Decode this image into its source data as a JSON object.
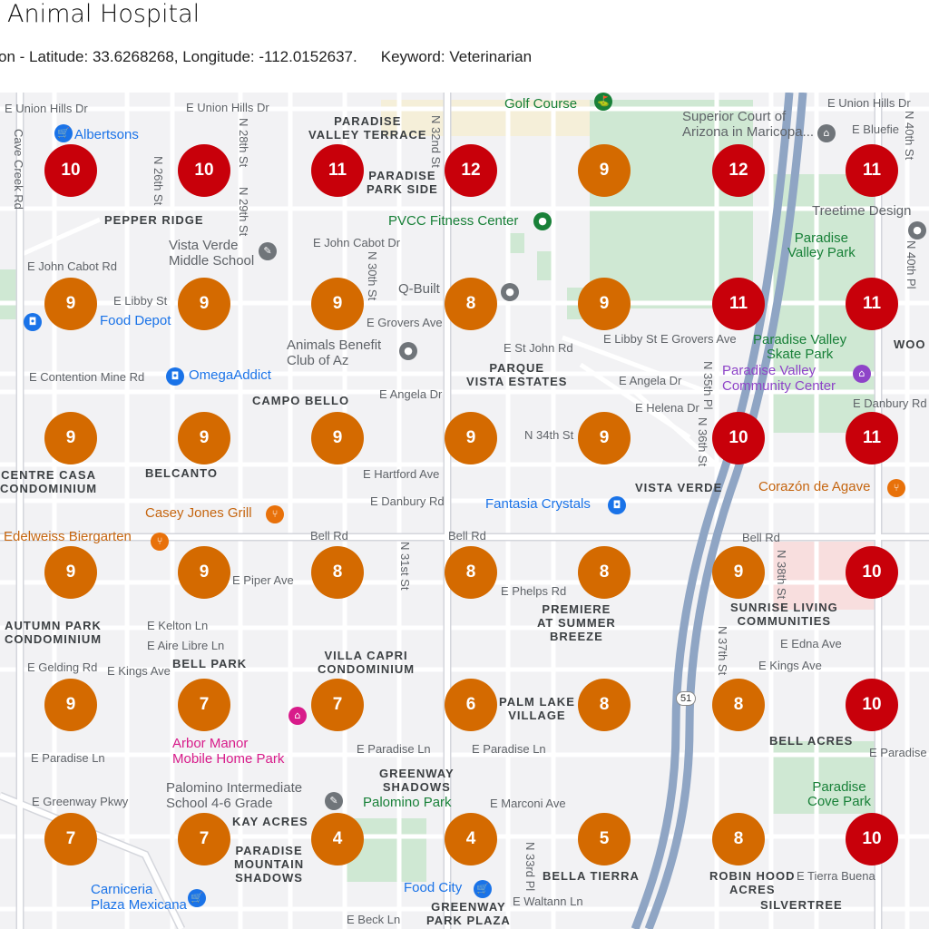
{
  "header": {
    "title": "Animal Hospital",
    "location": "on - Latitude: 33.6268268, Longitude: -112.0152637.",
    "keyword": "Keyword: Veterinarian"
  },
  "colors": {
    "high_rank": "#c8000a",
    "mid_rank": "#d46a00"
  },
  "grid": {
    "rows": [
      [
        10,
        10,
        11,
        12,
        9,
        12,
        11
      ],
      [
        9,
        9,
        9,
        8,
        9,
        11,
        11
      ],
      [
        9,
        9,
        9,
        9,
        9,
        10,
        11
      ],
      [
        9,
        9,
        8,
        8,
        8,
        9,
        10
      ],
      [
        9,
        7,
        7,
        6,
        8,
        8,
        10
      ],
      [
        7,
        7,
        4,
        4,
        5,
        8,
        10
      ]
    ]
  },
  "map": {
    "labels": [
      "E Union Hills Dr",
      "E Union Hills Dr",
      "E Union Hills Dr",
      "Cave Creek Rd",
      "N 26th St",
      "N 28th St",
      "N 29th St",
      "N 32nd St",
      "PARADISE\nVALLEY TERRACE",
      "PARADISE\nPARK SIDE",
      "PEPPER RIDGE",
      "E John Cabot Rd",
      "E John Cabot Dr",
      "E Libby St",
      "E Grovers Ave",
      "E Contention Mine Rd",
      "E Angela Dr",
      "CAMPO BELLO",
      "BELCANTO",
      "E Hartford Ave",
      "E Danbury Rd",
      "Bell Rd",
      "Bell Rd",
      "Bell Rd",
      "AUTUMN PARK\nCONDOMINIUM",
      "E Kelton Ln",
      "E Aire Libre Ln",
      "BELL PARK",
      "E Kings Ave",
      "VILLA CAPRI\nCONDOMINIUM",
      "E Paradise Ln",
      "E Paradise Ln",
      "E Paradise Ln",
      "KAY ACRES",
      "E Greenway Pkwy",
      "PARADISE\nMOUNTAIN\nSHADOWS",
      "GREENWAY\nSHADOWS",
      "E Marconi Ave",
      "E Waltann Ln",
      "E Beck Ln",
      "GREENWAY\nPARK PLAZA",
      "PARQUE\nVISTA ESTATES",
      "E St John Rd",
      "E Libby St",
      "E Grovers Ave",
      "E Angela Dr",
      "E Helena Dr",
      "N 34th St",
      "N 35th Pl",
      "N 36th St",
      "VISTA VERDE",
      "PREMIERE\nAT SUMMER\nBREEZE",
      "PALM LAKE\nVILLAGE",
      "E Phelps Rd",
      "SUNRISE LIVING\nCOMMUNITIES",
      "N 38th St",
      "E Edna Ave",
      "E Kings Ave",
      "N 37th St",
      "BELL ACRES",
      "ROBIN HOOD\nACRES",
      "SILVERTREE",
      "E Tierra Buena",
      "N 40th St",
      "N 40th Pl",
      "E Bluefie",
      "WOO",
      "E Paradise",
      "CENTRE CASA\nCONDOMINIUM",
      "N 31st St",
      "N 30th St",
      "E Gelding Rd",
      "E Piper Ave",
      "BELLA TIERRA",
      "N 33rd Pl",
      "E Danbury Rd"
    ],
    "pois": [
      {
        "name": "Albertsons",
        "kind": "blue",
        "icon": "cart-icon"
      },
      {
        "name": "Golf Course",
        "kind": "green",
        "icon": "golf-icon"
      },
      {
        "name": "Superior Court of\nArizona in Maricopa...",
        "kind": "gray",
        "icon": "courthouse-icon"
      },
      {
        "name": "Vista Verde\nMiddle School",
        "kind": "gray",
        "icon": "school-icon"
      },
      {
        "name": "PVCC Fitness Center",
        "kind": "green",
        "icon": "fitness-icon"
      },
      {
        "name": "Treetime Design",
        "kind": "gray",
        "icon": "store-icon"
      },
      {
        "name": "Q-Built",
        "kind": "gray",
        "icon": "store-icon"
      },
      {
        "name": "Food Depot",
        "kind": "blue",
        "icon": "shopping-bag-icon"
      },
      {
        "name": "Animals Benefit\nClub of Az",
        "kind": "gray",
        "icon": "place-icon"
      },
      {
        "name": "OmegaAddict",
        "kind": "blue",
        "icon": "shopping-bag-icon"
      },
      {
        "name": "Paradise Valley\nCommunity Center",
        "kind": "purple",
        "icon": "community-icon"
      },
      {
        "name": "Casey Jones Grill",
        "kind": "orange",
        "icon": "restaurant-icon"
      },
      {
        "name": "Fantasia Crystals",
        "kind": "blue",
        "icon": "shopping-bag-icon"
      },
      {
        "name": "Corazón de Agave",
        "kind": "orange",
        "icon": "restaurant-icon"
      },
      {
        "name": "Edelweiss Biergarten",
        "kind": "orange",
        "icon": "restaurant-icon"
      },
      {
        "name": "Arbor Manor\nMobile Home Park",
        "kind": "pink",
        "icon": "home-icon"
      },
      {
        "name": "Palomino Intermediate\nSchool 4-6 Grade",
        "kind": "gray",
        "icon": "school-icon"
      },
      {
        "name": "Carniceria\nPlaza Mexicana",
        "kind": "blue",
        "icon": "cart-icon"
      },
      {
        "name": "Food City",
        "kind": "blue",
        "icon": "cart-icon"
      }
    ],
    "parks": [
      "Paradise\nValley Park",
      "Paradise Valley\nSkate Park",
      "Paradise\nCove Park",
      "Palomino Park"
    ],
    "highway_shield": "51"
  }
}
